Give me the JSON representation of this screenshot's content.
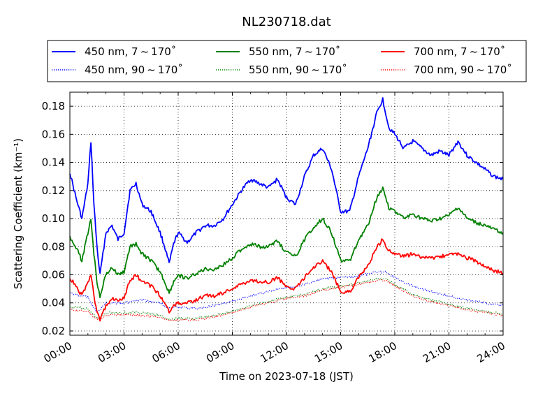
{
  "chart_data": {
    "type": "line",
    "title": "NL230718.dat",
    "xlabel": "Time on 2023-07-18 (JST)",
    "ylabel": "Scattering Coefficient (km⁻¹)",
    "xlim": [
      "00:00",
      "24:00"
    ],
    "ylim": [
      0.017,
      0.19
    ],
    "x_ticks": [
      "00:00",
      "03:00",
      "06:00",
      "09:00",
      "12:00",
      "15:00",
      "18:00",
      "21:00",
      "24:00"
    ],
    "y_ticks": [
      "0.02",
      "0.04",
      "0.06",
      "0.08",
      "0.10",
      "0.12",
      "0.14",
      "0.16",
      "0.18"
    ],
    "grid": true,
    "legend": "top",
    "series": [
      {
        "name": "450 nm, 7 ~ 170˚",
        "color": "#0000ff",
        "style": "solid",
        "points": [
          [
            "00:00",
            0.133
          ],
          [
            "00:20",
            0.115
          ],
          [
            "00:40",
            0.1
          ],
          [
            "01:00",
            0.125
          ],
          [
            "01:10",
            0.155
          ],
          [
            "01:20",
            0.11
          ],
          [
            "01:30",
            0.08
          ],
          [
            "01:40",
            0.06
          ],
          [
            "02:00",
            0.09
          ],
          [
            "02:20",
            0.095
          ],
          [
            "02:40",
            0.085
          ],
          [
            "03:00",
            0.09
          ],
          [
            "03:20",
            0.12
          ],
          [
            "03:40",
            0.125
          ],
          [
            "04:00",
            0.11
          ],
          [
            "04:30",
            0.105
          ],
          [
            "05:00",
            0.09
          ],
          [
            "05:15",
            0.08
          ],
          [
            "05:30",
            0.068
          ],
          [
            "05:45",
            0.082
          ],
          [
            "06:00",
            0.09
          ],
          [
            "06:30",
            0.083
          ],
          [
            "07:00",
            0.09
          ],
          [
            "07:30",
            0.095
          ],
          [
            "08:00",
            0.095
          ],
          [
            "08:30",
            0.1
          ],
          [
            "09:00",
            0.11
          ],
          [
            "09:30",
            0.12
          ],
          [
            "10:00",
            0.128
          ],
          [
            "10:30",
            0.125
          ],
          [
            "11:00",
            0.122
          ],
          [
            "11:30",
            0.128
          ],
          [
            "12:00",
            0.115
          ],
          [
            "12:30",
            0.11
          ],
          [
            "13:00",
            0.13
          ],
          [
            "13:30",
            0.145
          ],
          [
            "14:00",
            0.15
          ],
          [
            "14:30",
            0.135
          ],
          [
            "15:00",
            0.105
          ],
          [
            "15:30",
            0.105
          ],
          [
            "16:00",
            0.13
          ],
          [
            "16:30",
            0.15
          ],
          [
            "17:00",
            0.175
          ],
          [
            "17:20",
            0.185
          ],
          [
            "17:40",
            0.165
          ],
          [
            "18:00",
            0.16
          ],
          [
            "18:30",
            0.15
          ],
          [
            "19:00",
            0.155
          ],
          [
            "19:30",
            0.15
          ],
          [
            "20:00",
            0.145
          ],
          [
            "20:30",
            0.148
          ],
          [
            "21:00",
            0.145
          ],
          [
            "21:30",
            0.155
          ],
          [
            "22:00",
            0.145
          ],
          [
            "22:30",
            0.14
          ],
          [
            "23:00",
            0.135
          ],
          [
            "23:30",
            0.13
          ],
          [
            "24:00",
            0.128
          ]
        ]
      },
      {
        "name": "450 nm, 90 ~ 170˚",
        "color": "#0000ff",
        "style": "dotted",
        "points": [
          [
            "00:00",
            0.047
          ],
          [
            "01:00",
            0.044
          ],
          [
            "01:30",
            0.033
          ],
          [
            "02:00",
            0.04
          ],
          [
            "03:00",
            0.04
          ],
          [
            "04:00",
            0.042
          ],
          [
            "05:00",
            0.04
          ],
          [
            "05:30",
            0.036
          ],
          [
            "06:00",
            0.037
          ],
          [
            "07:00",
            0.036
          ],
          [
            "08:00",
            0.038
          ],
          [
            "09:00",
            0.041
          ],
          [
            "10:00",
            0.045
          ],
          [
            "11:00",
            0.048
          ],
          [
            "12:00",
            0.051
          ],
          [
            "13:00",
            0.053
          ],
          [
            "14:00",
            0.057
          ],
          [
            "15:00",
            0.058
          ],
          [
            "16:00",
            0.059
          ],
          [
            "17:00",
            0.062
          ],
          [
            "17:30",
            0.062
          ],
          [
            "18:00",
            0.058
          ],
          [
            "19:00",
            0.052
          ],
          [
            "20:00",
            0.048
          ],
          [
            "21:00",
            0.045
          ],
          [
            "22:00",
            0.042
          ],
          [
            "23:00",
            0.04
          ],
          [
            "24:00",
            0.038
          ]
        ]
      },
      {
        "name": "550 nm, 7 ~ 170˚",
        "color": "#008000",
        "style": "solid",
        "points": [
          [
            "00:00",
            0.087
          ],
          [
            "00:20",
            0.08
          ],
          [
            "00:40",
            0.07
          ],
          [
            "01:00",
            0.09
          ],
          [
            "01:10",
            0.1
          ],
          [
            "01:20",
            0.075
          ],
          [
            "01:30",
            0.055
          ],
          [
            "01:40",
            0.045
          ],
          [
            "02:00",
            0.06
          ],
          [
            "02:20",
            0.065
          ],
          [
            "02:40",
            0.06
          ],
          [
            "03:00",
            0.062
          ],
          [
            "03:20",
            0.08
          ],
          [
            "03:40",
            0.082
          ],
          [
            "04:00",
            0.075
          ],
          [
            "04:30",
            0.07
          ],
          [
            "05:00",
            0.062
          ],
          [
            "05:15",
            0.055
          ],
          [
            "05:30",
            0.047
          ],
          [
            "05:45",
            0.055
          ],
          [
            "06:00",
            0.06
          ],
          [
            "06:30",
            0.057
          ],
          [
            "07:00",
            0.061
          ],
          [
            "07:30",
            0.064
          ],
          [
            "08:00",
            0.064
          ],
          [
            "08:30",
            0.067
          ],
          [
            "09:00",
            0.072
          ],
          [
            "09:30",
            0.078
          ],
          [
            "10:00",
            0.082
          ],
          [
            "10:30",
            0.08
          ],
          [
            "11:00",
            0.08
          ],
          [
            "11:30",
            0.084
          ],
          [
            "12:00",
            0.076
          ],
          [
            "12:30",
            0.073
          ],
          [
            "13:00",
            0.085
          ],
          [
            "13:30",
            0.094
          ],
          [
            "14:00",
            0.1
          ],
          [
            "14:30",
            0.09
          ],
          [
            "15:00",
            0.07
          ],
          [
            "15:30",
            0.07
          ],
          [
            "16:00",
            0.085
          ],
          [
            "16:30",
            0.095
          ],
          [
            "17:00",
            0.115
          ],
          [
            "17:20",
            0.122
          ],
          [
            "17:40",
            0.108
          ],
          [
            "18:00",
            0.105
          ],
          [
            "18:30",
            0.1
          ],
          [
            "19:00",
            0.103
          ],
          [
            "19:30",
            0.1
          ],
          [
            "20:00",
            0.098
          ],
          [
            "20:30",
            0.1
          ],
          [
            "21:00",
            0.102
          ],
          [
            "21:30",
            0.108
          ],
          [
            "22:00",
            0.1
          ],
          [
            "22:30",
            0.097
          ],
          [
            "23:00",
            0.095
          ],
          [
            "23:30",
            0.092
          ],
          [
            "24:00",
            0.09
          ]
        ]
      },
      {
        "name": "550 nm, 90 ~ 170˚",
        "color": "#008000",
        "style": "dotted",
        "points": [
          [
            "00:00",
            0.037
          ],
          [
            "01:00",
            0.036
          ],
          [
            "01:30",
            0.029
          ],
          [
            "02:00",
            0.033
          ],
          [
            "03:00",
            0.033
          ],
          [
            "04:00",
            0.033
          ],
          [
            "05:00",
            0.031
          ],
          [
            "05:30",
            0.028
          ],
          [
            "06:00",
            0.029
          ],
          [
            "07:00",
            0.029
          ],
          [
            "08:00",
            0.031
          ],
          [
            "09:00",
            0.034
          ],
          [
            "10:00",
            0.038
          ],
          [
            "11:00",
            0.041
          ],
          [
            "12:00",
            0.044
          ],
          [
            "13:00",
            0.046
          ],
          [
            "14:00",
            0.05
          ],
          [
            "15:00",
            0.052
          ],
          [
            "16:00",
            0.054
          ],
          [
            "17:00",
            0.057
          ],
          [
            "17:30",
            0.057
          ],
          [
            "18:00",
            0.053
          ],
          [
            "19:00",
            0.046
          ],
          [
            "20:00",
            0.042
          ],
          [
            "21:00",
            0.039
          ],
          [
            "22:00",
            0.036
          ],
          [
            "23:00",
            0.034
          ],
          [
            "24:00",
            0.032
          ]
        ]
      },
      {
        "name": "700 nm, 7 ~ 170˚",
        "color": "#ff0000",
        "style": "solid",
        "points": [
          [
            "00:00",
            0.058
          ],
          [
            "00:20",
            0.052
          ],
          [
            "00:40",
            0.045
          ],
          [
            "01:00",
            0.055
          ],
          [
            "01:10",
            0.06
          ],
          [
            "01:20",
            0.045
          ],
          [
            "01:30",
            0.033
          ],
          [
            "01:40",
            0.028
          ],
          [
            "02:00",
            0.038
          ],
          [
            "02:20",
            0.044
          ],
          [
            "02:40",
            0.041
          ],
          [
            "03:00",
            0.044
          ],
          [
            "03:20",
            0.056
          ],
          [
            "03:40",
            0.06
          ],
          [
            "04:00",
            0.055
          ],
          [
            "04:30",
            0.052
          ],
          [
            "05:00",
            0.045
          ],
          [
            "05:15",
            0.04
          ],
          [
            "05:30",
            0.034
          ],
          [
            "05:45",
            0.038
          ],
          [
            "06:00",
            0.04
          ],
          [
            "06:30",
            0.04
          ],
          [
            "07:00",
            0.042
          ],
          [
            "07:30",
            0.045
          ],
          [
            "08:00",
            0.045
          ],
          [
            "08:30",
            0.047
          ],
          [
            "09:00",
            0.05
          ],
          [
            "09:30",
            0.053
          ],
          [
            "10:00",
            0.056
          ],
          [
            "10:30",
            0.055
          ],
          [
            "11:00",
            0.055
          ],
          [
            "11:30",
            0.058
          ],
          [
            "12:00",
            0.052
          ],
          [
            "12:30",
            0.05
          ],
          [
            "13:00",
            0.058
          ],
          [
            "13:30",
            0.065
          ],
          [
            "14:00",
            0.07
          ],
          [
            "14:30",
            0.062
          ],
          [
            "15:00",
            0.048
          ],
          [
            "15:30",
            0.048
          ],
          [
            "16:00",
            0.058
          ],
          [
            "16:30",
            0.066
          ],
          [
            "17:00",
            0.08
          ],
          [
            "17:20",
            0.085
          ],
          [
            "17:40",
            0.077
          ],
          [
            "18:00",
            0.075
          ],
          [
            "18:30",
            0.073
          ],
          [
            "19:00",
            0.075
          ],
          [
            "19:30",
            0.072
          ],
          [
            "20:00",
            0.072
          ],
          [
            "20:30",
            0.073
          ],
          [
            "21:00",
            0.074
          ],
          [
            "21:30",
            0.075
          ],
          [
            "22:00",
            0.072
          ],
          [
            "22:30",
            0.07
          ],
          [
            "23:00",
            0.066
          ],
          [
            "23:30",
            0.063
          ],
          [
            "24:00",
            0.061
          ]
        ]
      },
      {
        "name": "700 nm, 90 ~ 170˚",
        "color": "#ff0000",
        "style": "dotted",
        "points": [
          [
            "00:00",
            0.035
          ],
          [
            "01:00",
            0.034
          ],
          [
            "01:30",
            0.028
          ],
          [
            "02:00",
            0.031
          ],
          [
            "03:00",
            0.032
          ],
          [
            "04:00",
            0.031
          ],
          [
            "05:00",
            0.03
          ],
          [
            "05:30",
            0.027
          ],
          [
            "06:00",
            0.028
          ],
          [
            "07:00",
            0.028
          ],
          [
            "08:00",
            0.03
          ],
          [
            "09:00",
            0.033
          ],
          [
            "10:00",
            0.037
          ],
          [
            "11:00",
            0.04
          ],
          [
            "12:00",
            0.043
          ],
          [
            "13:00",
            0.045
          ],
          [
            "14:00",
            0.049
          ],
          [
            "15:00",
            0.051
          ],
          [
            "16:00",
            0.053
          ],
          [
            "17:00",
            0.056
          ],
          [
            "17:30",
            0.056
          ],
          [
            "18:00",
            0.052
          ],
          [
            "19:00",
            0.045
          ],
          [
            "20:00",
            0.041
          ],
          [
            "21:00",
            0.038
          ],
          [
            "22:00",
            0.035
          ],
          [
            "23:00",
            0.033
          ],
          [
            "24:00",
            0.031
          ]
        ]
      }
    ]
  }
}
